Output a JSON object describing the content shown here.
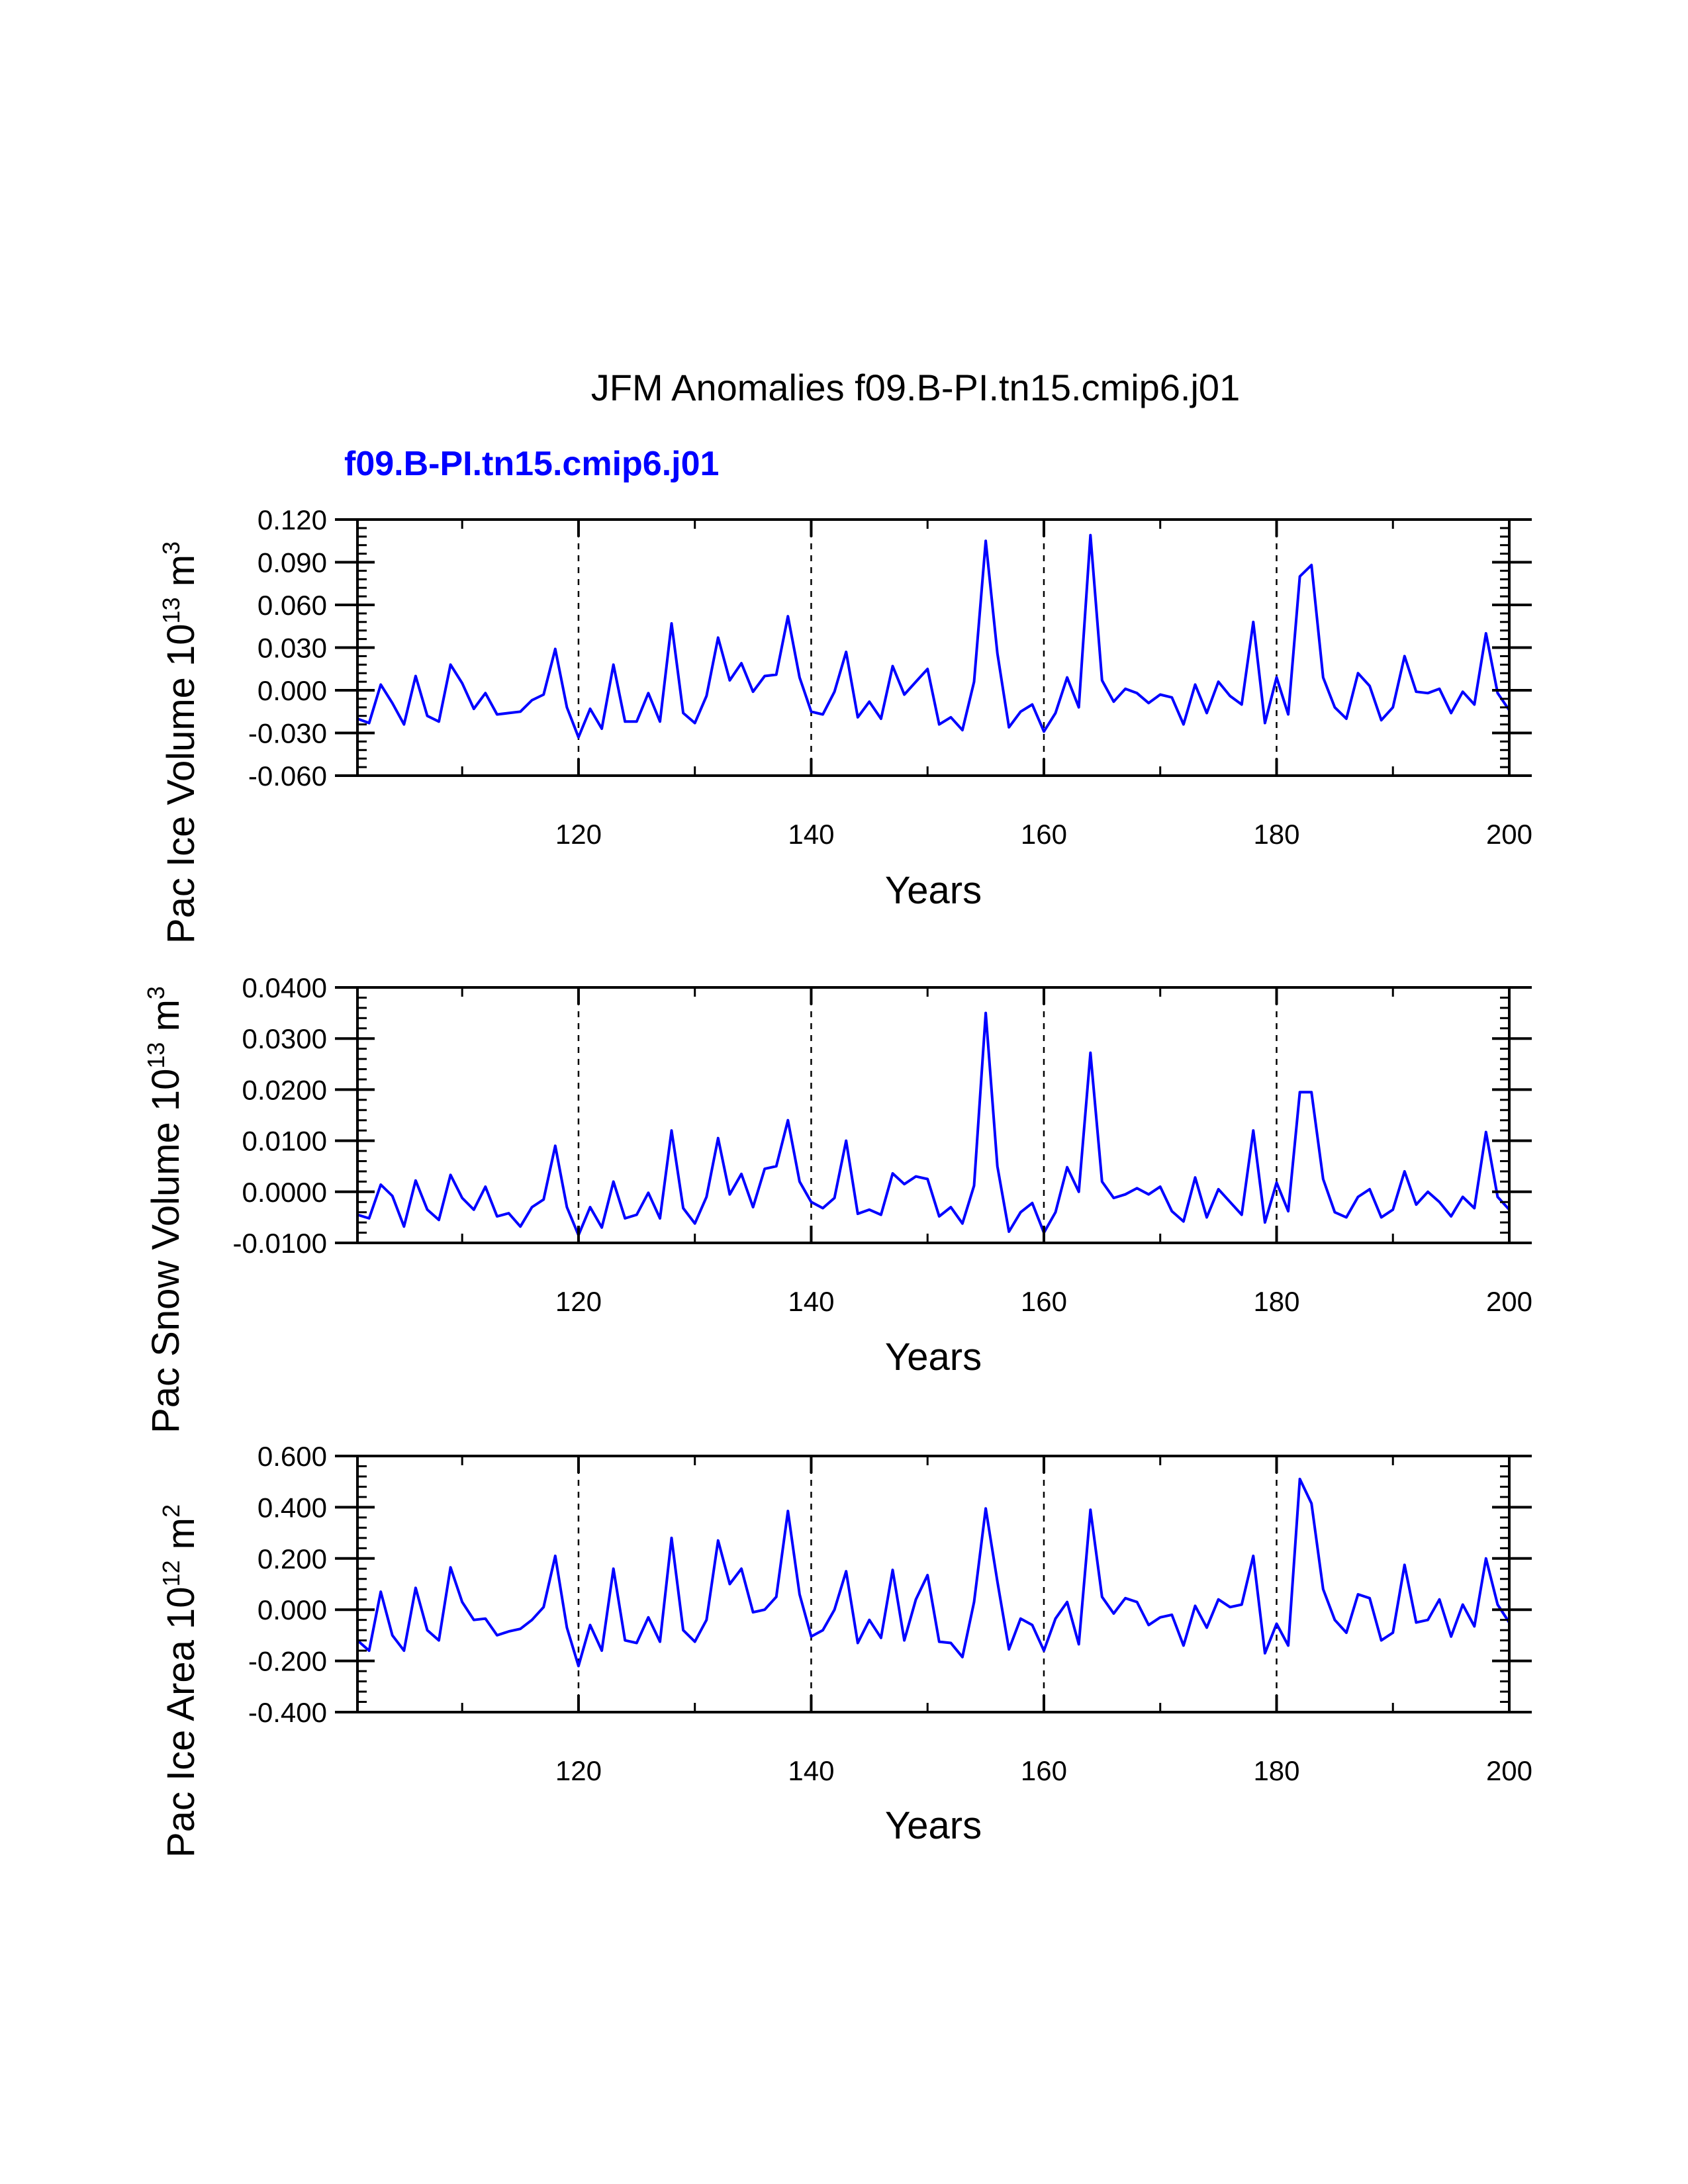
{
  "title": "JFM Anomalies f09.B-PI.tn15.cmip6.j01",
  "subtitle": "f09.B-PI.tn15.cmip6.j01",
  "colors": {
    "series": "#0000ff",
    "subtitle": "#0000ff",
    "axes": "#000000"
  },
  "chart_data": [
    {
      "type": "line",
      "ylabel": {
        "prefix": "Pac Ice Volume 10",
        "exp": "13",
        "unit": " m",
        "unit_exp": "3"
      },
      "xlabel": "Years",
      "xlim": [
        101,
        200
      ],
      "ylim": [
        -0.06,
        0.12
      ],
      "x_ticks": [
        120,
        140,
        160,
        180,
        200
      ],
      "x_tick_labels": [
        "120",
        "140",
        "160",
        "180",
        "200"
      ],
      "y_ticks": [
        -0.06,
        -0.03,
        0.0,
        0.03,
        0.06,
        0.09,
        0.12
      ],
      "y_tick_labels": [
        "-0.060",
        "-0.030",
        "0.000",
        "0.030",
        "0.060",
        "0.090",
        "0.120"
      ],
      "ref_lines_x": [
        120,
        140,
        160,
        180
      ],
      "series": [
        {
          "name": "f09.B-PI.tn15.cmip6.j01",
          "x_start": 101,
          "values": [
            -0.02,
            -0.023,
            0.004,
            -0.009,
            -0.024,
            0.01,
            -0.018,
            -0.022,
            0.018,
            0.005,
            -0.013,
            -0.002,
            -0.017,
            -0.016,
            -0.015,
            -0.007,
            -0.003,
            0.029,
            -0.012,
            -0.033,
            -0.013,
            -0.027,
            0.018,
            -0.022,
            -0.022,
            -0.002,
            -0.022,
            0.047,
            -0.016,
            -0.023,
            -0.004,
            0.037,
            0.007,
            0.019,
            -0.001,
            0.01,
            0.011,
            0.052,
            0.009,
            -0.015,
            -0.017,
            -0.001,
            0.027,
            -0.019,
            -0.008,
            -0.02,
            0.017,
            -0.003,
            0.006,
            0.015,
            -0.024,
            -0.019,
            -0.028,
            0.006,
            0.105,
            0.026,
            -0.026,
            -0.015,
            -0.01,
            -0.029,
            -0.016,
            0.009,
            -0.012,
            0.109,
            0.007,
            -0.008,
            0.001,
            -0.002,
            -0.009,
            -0.003,
            -0.005,
            -0.024,
            0.004,
            -0.016,
            0.006,
            -0.004,
            -0.01,
            0.048,
            -0.023,
            0.009,
            -0.017,
            0.08,
            0.088,
            0.009,
            -0.012,
            -0.02,
            0.012,
            0.003,
            -0.021,
            -0.012,
            0.024,
            -0.001,
            -0.002,
            0.001,
            -0.016,
            -0.001,
            -0.01,
            0.04,
            -0.002,
            -0.014
          ]
        }
      ]
    },
    {
      "type": "line",
      "ylabel": {
        "prefix": "Pac Snow Volume 10",
        "exp": "13",
        "unit": " m",
        "unit_exp": "3"
      },
      "xlabel": "Years",
      "xlim": [
        101,
        200
      ],
      "ylim": [
        -0.01,
        0.04
      ],
      "x_ticks": [
        120,
        140,
        160,
        180,
        200
      ],
      "x_tick_labels": [
        "120",
        "140",
        "160",
        "180",
        "200"
      ],
      "y_ticks": [
        -0.01,
        0.0,
        0.01,
        0.02,
        0.03,
        0.04
      ],
      "y_tick_labels": [
        "-0.0100",
        "0.0000",
        "0.0100",
        "0.0200",
        "0.0300",
        "0.0400"
      ],
      "ref_lines_x": [
        120,
        140,
        160,
        180
      ],
      "series": [
        {
          "name": "f09.B-PI.tn15.cmip6.j01",
          "x_start": 101,
          "values": [
            -0.0045,
            -0.0052,
            0.0014,
            -0.0008,
            -0.0068,
            0.0022,
            -0.0035,
            -0.0055,
            0.0033,
            -0.0012,
            -0.0035,
            0.001,
            -0.0048,
            -0.0042,
            -0.0068,
            -0.003,
            -0.0015,
            0.009,
            -0.003,
            -0.0085,
            -0.003,
            -0.007,
            0.002,
            -0.0052,
            -0.0045,
            -0.0002,
            -0.0052,
            0.012,
            -0.0032,
            -0.0062,
            -0.001,
            0.0105,
            -0.0005,
            0.0035,
            -0.003,
            0.0045,
            0.005,
            0.014,
            0.002,
            -0.002,
            -0.0032,
            -0.0012,
            0.01,
            -0.0043,
            -0.0035,
            -0.0045,
            0.0036,
            0.0015,
            0.003,
            0.0025,
            -0.0048,
            -0.003,
            -0.0062,
            0.0012,
            0.035,
            0.005,
            -0.0078,
            -0.004,
            -0.0022,
            -0.008,
            -0.004,
            0.0048,
            0.0,
            0.0272,
            0.002,
            -0.0012,
            -0.0005,
            0.0007,
            -0.0005,
            0.001,
            -0.0038,
            -0.0058,
            0.0028,
            -0.005,
            0.0005,
            -0.002,
            -0.0045,
            0.012,
            -0.006,
            0.0018,
            -0.0038,
            0.0195,
            0.0195,
            0.0025,
            -0.004,
            -0.005,
            -0.001,
            0.0005,
            -0.005,
            -0.0035,
            0.004,
            -0.0025,
            0.0,
            -0.002,
            -0.0048,
            -0.001,
            -0.0032,
            0.0117,
            -0.001,
            -0.0035
          ]
        }
      ]
    },
    {
      "type": "line",
      "ylabel": {
        "prefix": "Pac Ice Area 10",
        "exp": "12",
        "unit": " m",
        "unit_exp": "2"
      },
      "xlabel": "Years",
      "xlim": [
        101,
        200
      ],
      "ylim": [
        -0.4,
        0.6
      ],
      "x_ticks": [
        120,
        140,
        160,
        180,
        200
      ],
      "x_tick_labels": [
        "120",
        "140",
        "160",
        "180",
        "200"
      ],
      "y_ticks": [
        -0.4,
        -0.2,
        0.0,
        0.2,
        0.4,
        0.6
      ],
      "y_tick_labels": [
        "-0.400",
        "-0.200",
        "0.000",
        "0.200",
        "0.400",
        "0.600"
      ],
      "ref_lines_x": [
        120,
        140,
        160,
        180
      ],
      "series": [
        {
          "name": "f09.B-PI.tn15.cmip6.j01",
          "x_start": 101,
          "values": [
            -0.12,
            -0.16,
            0.07,
            -0.1,
            -0.16,
            0.085,
            -0.08,
            -0.12,
            0.165,
            0.03,
            -0.04,
            -0.035,
            -0.1,
            -0.085,
            -0.075,
            -0.04,
            0.01,
            0.21,
            -0.07,
            -0.22,
            -0.06,
            -0.16,
            0.16,
            -0.12,
            -0.13,
            -0.03,
            -0.125,
            0.28,
            -0.08,
            -0.125,
            -0.04,
            0.27,
            0.1,
            0.16,
            -0.01,
            0.0,
            0.05,
            0.385,
            0.06,
            -0.105,
            -0.08,
            0.0,
            0.15,
            -0.13,
            -0.04,
            -0.11,
            0.155,
            -0.12,
            0.04,
            0.135,
            -0.125,
            -0.13,
            -0.185,
            0.03,
            0.395,
            0.11,
            -0.155,
            -0.035,
            -0.06,
            -0.16,
            -0.035,
            0.03,
            -0.135,
            0.39,
            0.05,
            -0.015,
            0.045,
            0.03,
            -0.06,
            -0.03,
            -0.02,
            -0.14,
            0.015,
            -0.07,
            0.04,
            0.01,
            0.02,
            0.21,
            -0.17,
            -0.055,
            -0.14,
            0.51,
            0.415,
            0.08,
            -0.04,
            -0.09,
            0.06,
            0.045,
            -0.12,
            -0.09,
            0.175,
            -0.05,
            -0.04,
            0.04,
            -0.105,
            0.02,
            -0.065,
            0.2,
            0.02,
            -0.05
          ]
        }
      ]
    }
  ]
}
